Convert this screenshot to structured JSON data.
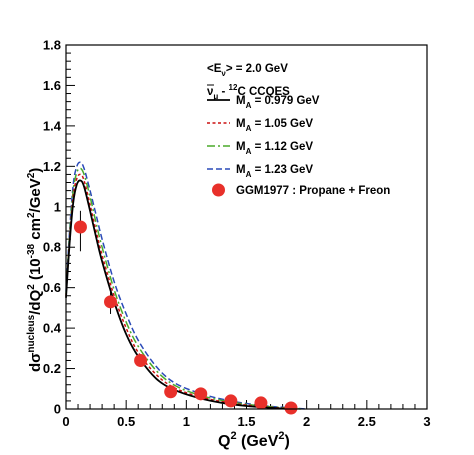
{
  "chart_data": {
    "type": "line",
    "x_range": [
      0,
      3
    ],
    "y_range": [
      0,
      1.8
    ],
    "x_ticks": [
      "0",
      "0.5",
      "1",
      "1.5",
      "2",
      "2.5",
      "3"
    ],
    "y_ticks": [
      "0",
      "0.2",
      "0.4",
      "0.6",
      "0.8",
      "1",
      "1.2",
      "1.4",
      "1.6",
      "1.8"
    ],
    "x_label": {
      "base": "Q",
      "sup": "2",
      "tail": " (GeV",
      "tail_sup": "2",
      "end": ")"
    },
    "y_label": {
      "t1": "d",
      "t2": "σ",
      "sup1": "nucleus",
      "t3": "/dQ",
      "sup2": "2",
      "t4": " (10",
      "sup3": "-38",
      "t5": " cm",
      "sup4": "2",
      "t6": "/GeV",
      "sup5": "2",
      "t7": ")"
    },
    "annotations": {
      "energy": {
        "a": "<E",
        "sub": "ν",
        "b": "> = 2.0 GeV"
      },
      "process": {
        "nu": "ν",
        "sub": "μ",
        "a": " - ",
        "sup": "12",
        "b": "C CCQES"
      }
    },
    "series": [
      {
        "prefix": "M",
        "sub": "A",
        "label_value": " = 0.979 GeV",
        "color": "#000000",
        "dash": "",
        "width": 1.8,
        "x": [
          0,
          0.03,
          0.06,
          0.09,
          0.12,
          0.15,
          0.2,
          0.25,
          0.3,
          0.4,
          0.5,
          0.6,
          0.75,
          0.9,
          1.1,
          1.3,
          1.5,
          1.7,
          1.85
        ],
        "y": [
          0.55,
          0.82,
          1.02,
          1.11,
          1.13,
          1.1,
          0.98,
          0.85,
          0.73,
          0.53,
          0.37,
          0.26,
          0.15,
          0.095,
          0.055,
          0.03,
          0.015,
          0.006,
          0
        ]
      },
      {
        "prefix": "M",
        "sub": "A",
        "label_value": " = 1.05 GeV",
        "color": "#cc1111",
        "dash": "3,2.5",
        "width": 1.5,
        "x": [
          0,
          0.03,
          0.06,
          0.09,
          0.12,
          0.15,
          0.2,
          0.25,
          0.3,
          0.4,
          0.5,
          0.6,
          0.75,
          0.9,
          1.1,
          1.3,
          1.5,
          1.7,
          1.9
        ],
        "y": [
          0.56,
          0.84,
          1.05,
          1.14,
          1.16,
          1.13,
          1.01,
          0.88,
          0.76,
          0.56,
          0.4,
          0.28,
          0.17,
          0.105,
          0.062,
          0.036,
          0.019,
          0.008,
          0
        ]
      },
      {
        "prefix": "M",
        "sub": "A",
        "label_value": " = 1.12 GeV",
        "color": "#4aaa2a",
        "dash": "8,3,2,3",
        "width": 1.5,
        "x": [
          0,
          0.03,
          0.06,
          0.09,
          0.12,
          0.15,
          0.2,
          0.25,
          0.3,
          0.4,
          0.5,
          0.6,
          0.75,
          0.9,
          1.1,
          1.3,
          1.5,
          1.7,
          1.95
        ],
        "y": [
          0.57,
          0.86,
          1.08,
          1.17,
          1.19,
          1.16,
          1.05,
          0.92,
          0.8,
          0.59,
          0.43,
          0.31,
          0.19,
          0.118,
          0.07,
          0.042,
          0.023,
          0.011,
          0
        ]
      },
      {
        "prefix": "M",
        "sub": "A",
        "label_value": " = 1.23 GeV",
        "color": "#2a4ab8",
        "dash": "6,3",
        "width": 1.5,
        "x": [
          0,
          0.03,
          0.06,
          0.09,
          0.12,
          0.15,
          0.2,
          0.25,
          0.3,
          0.4,
          0.5,
          0.6,
          0.75,
          0.9,
          1.1,
          1.3,
          1.5,
          1.7,
          2.0
        ],
        "y": [
          0.58,
          0.88,
          1.11,
          1.2,
          1.22,
          1.19,
          1.08,
          0.96,
          0.84,
          0.63,
          0.47,
          0.34,
          0.21,
          0.13,
          0.08,
          0.048,
          0.027,
          0.013,
          0
        ]
      }
    ],
    "data_points": {
      "label": "GGM1977 : Propane + Freon",
      "color": "#e8302a",
      "x": [
        0.12,
        0.37,
        0.62,
        0.87,
        1.12,
        1.37,
        1.62,
        1.87
      ],
      "y": [
        0.9,
        0.53,
        0.24,
        0.085,
        0.075,
        0.04,
        0.03,
        0.005
      ],
      "err_low": [
        0.12,
        0.06,
        0.03,
        0.01,
        0.01,
        0.008,
        0.006,
        0.003
      ],
      "err_high": [
        0.08,
        0.05,
        0.03,
        0.01,
        0.01,
        0.008,
        0.006,
        0.003
      ]
    }
  }
}
